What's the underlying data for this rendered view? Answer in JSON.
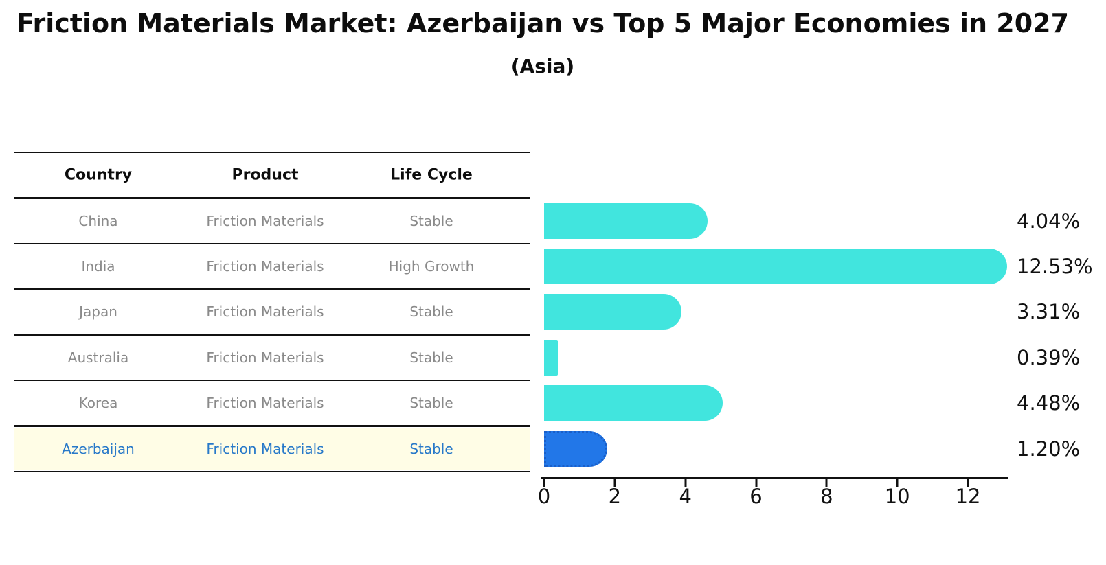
{
  "title": "Friction Materials Market: Azerbaijan vs Top 5 Major Economies in 2027",
  "subtitle": "(Asia)",
  "table": {
    "headers": [
      "Country",
      "Product",
      "Life Cycle"
    ],
    "rows": [
      {
        "country": "China",
        "product": "Friction Materials",
        "life_cycle": "Stable",
        "highlight": false
      },
      {
        "country": "India",
        "product": "Friction Materials",
        "life_cycle": "High Growth",
        "highlight": false
      },
      {
        "country": "Japan",
        "product": "Friction Materials",
        "life_cycle": "Stable",
        "highlight": false
      },
      {
        "country": "Australia",
        "product": "Friction Materials",
        "life_cycle": "Stable",
        "highlight": false
      },
      {
        "country": "Korea",
        "product": "Friction Materials",
        "life_cycle": "Stable",
        "highlight": false
      },
      {
        "country": "Azerbaijan",
        "product": "Friction Materials",
        "life_cycle": "Stable",
        "highlight": true
      }
    ]
  },
  "chart_data": {
    "type": "bar",
    "orientation": "horizontal",
    "title": "Friction Materials Market: Azerbaijan vs Top 5 Major Economies in 2027 (Asia)",
    "categories": [
      "China",
      "India",
      "Japan",
      "Australia",
      "Korea",
      "Azerbaijan"
    ],
    "values": [
      4.04,
      12.53,
      3.31,
      0.39,
      4.48,
      1.2
    ],
    "value_labels": [
      "4.04%",
      "12.53%",
      "3.31%",
      "0.39%",
      "4.48%",
      "1.20%"
    ],
    "x_ticks": [
      0,
      2,
      4,
      6,
      8,
      10,
      12
    ],
    "x_tick_labels": [
      "0",
      "2",
      "4",
      "6",
      "8",
      "10",
      "12"
    ],
    "xlim": [
      0,
      13.15
    ],
    "grid": false,
    "legend": "none",
    "highlight_index": 5
  },
  "colors": {
    "bar": "#41e5de",
    "highlight_bar": "#2277e8",
    "highlight_bar_border": "#1a5fc8",
    "highlight_text": "#2879c9",
    "table_text": "#8a8a8a",
    "axis": "#111111"
  }
}
